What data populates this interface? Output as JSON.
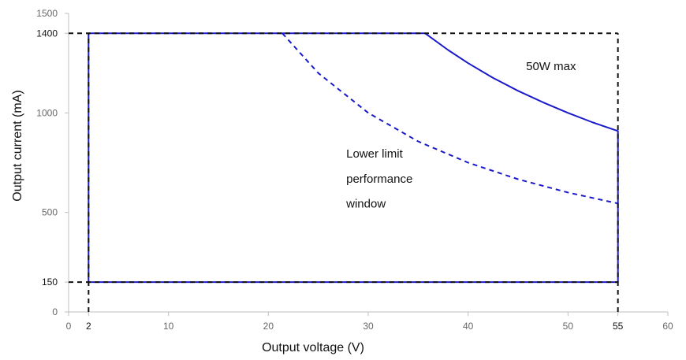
{
  "chart_data": {
    "type": "line",
    "xlabel": "Output voltage (V)",
    "ylabel": "Output current (mA)",
    "xlim": [
      0,
      60
    ],
    "ylim": [
      0,
      1500
    ],
    "x_ticks": [
      0,
      10,
      20,
      30,
      40,
      50,
      60
    ],
    "y_ticks": [
      0,
      500,
      1000,
      1500
    ],
    "x_marked_ticks": [
      2,
      55
    ],
    "y_marked_ticks": [
      150,
      1400
    ],
    "grid": false,
    "colors": {
      "curve": "#1a1acc",
      "reference": "#111111",
      "axis": "#bfbfbf",
      "tick_text": "#666666"
    },
    "series": [
      {
        "style": "solid",
        "x": [
          2,
          2,
          35.7,
          38,
          40,
          42.5,
          45,
          47.5,
          50,
          52.5,
          55,
          55,
          2
        ],
        "y": [
          150,
          1400,
          1400,
          1316,
          1250,
          1176,
          1111,
          1053,
          1000,
          952,
          909,
          150,
          150
        ]
      },
      {
        "style": "dashed",
        "x": [
          21.4,
          25,
          30,
          35,
          40,
          45,
          50,
          55
        ],
        "y": [
          1400,
          1200,
          1000,
          857,
          750,
          667,
          600,
          545
        ]
      }
    ],
    "reference_lines": [
      {
        "axis": "y",
        "value": 1400,
        "x_from": 0,
        "x_to": 55
      },
      {
        "axis": "y",
        "value": 150,
        "x_from": 0,
        "x_to": 55
      },
      {
        "axis": "x",
        "value": 2,
        "y_from": 0,
        "y_to": 1400
      },
      {
        "axis": "x",
        "value": 55,
        "y_from": 0,
        "y_to": 1400
      }
    ],
    "annotations": [
      {
        "text": "50W max",
        "x": 45.8,
        "y": 1215
      },
      {
        "text": "Lower limit",
        "x": 27.8,
        "y": 775
      },
      {
        "text": "performance",
        "x": 27.8,
        "y": 650
      },
      {
        "text": "window",
        "x": 27.8,
        "y": 525
      }
    ]
  }
}
